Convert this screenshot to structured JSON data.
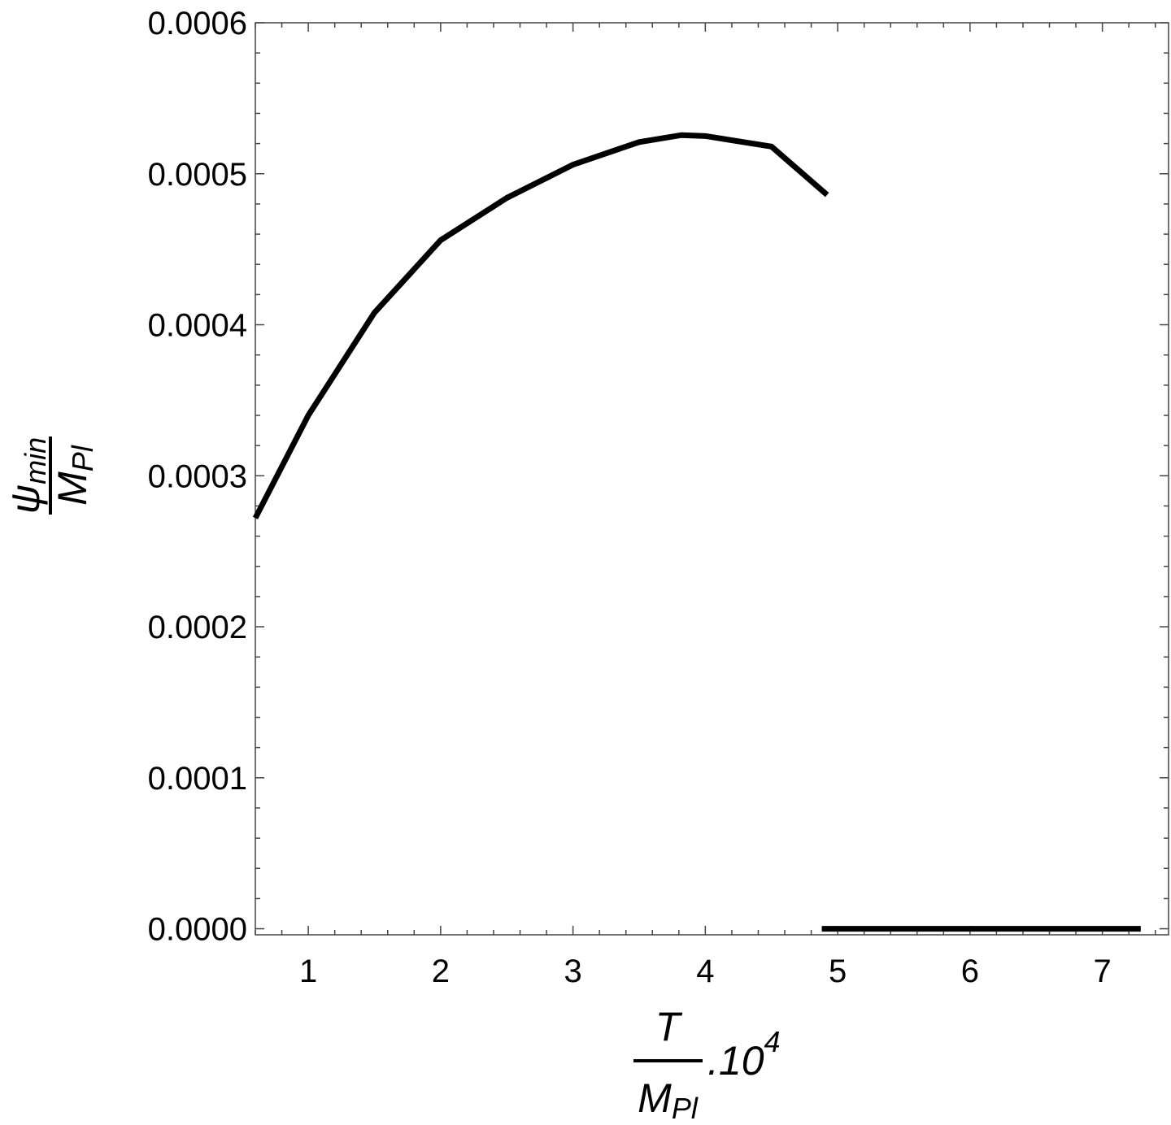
{
  "chart_data": {
    "type": "line",
    "ylabel": {
      "numerator": "ψ",
      "numerator_sub": "min",
      "denominator": "M",
      "denominator_sub": "Pl"
    },
    "xlabel": {
      "numerator": "T",
      "denominator": "M",
      "denominator_sub": "Pl",
      "suffix": ".10",
      "suffix_sup": "4"
    },
    "series": [
      {
        "color": "#000000",
        "x": [
          0.6,
          1,
          1.5,
          2,
          2.5,
          3,
          3.5,
          3.82,
          4,
          4.5,
          4.92
        ],
        "values": [
          0.000272,
          0.00034,
          0.000408,
          0.000456,
          0.000484,
          0.000506,
          0.000521,
          0.0005256,
          0.000525,
          0.000518,
          0.000486
        ]
      },
      {
        "color": "#000000",
        "x": [
          4.88,
          7.29
        ],
        "values": [
          0,
          0
        ]
      }
    ],
    "xlim": [
      0.6,
      7.5
    ],
    "xticks": [
      1,
      2,
      3,
      4,
      5,
      6,
      7
    ],
    "ylim": [
      -4e-06,
      0.0006
    ],
    "yticks": [
      {
        "value": 0,
        "label": "0.0000"
      },
      0.0001,
      0.0002,
      0.0003,
      0.0004,
      0.0005,
      0.0006
    ]
  }
}
